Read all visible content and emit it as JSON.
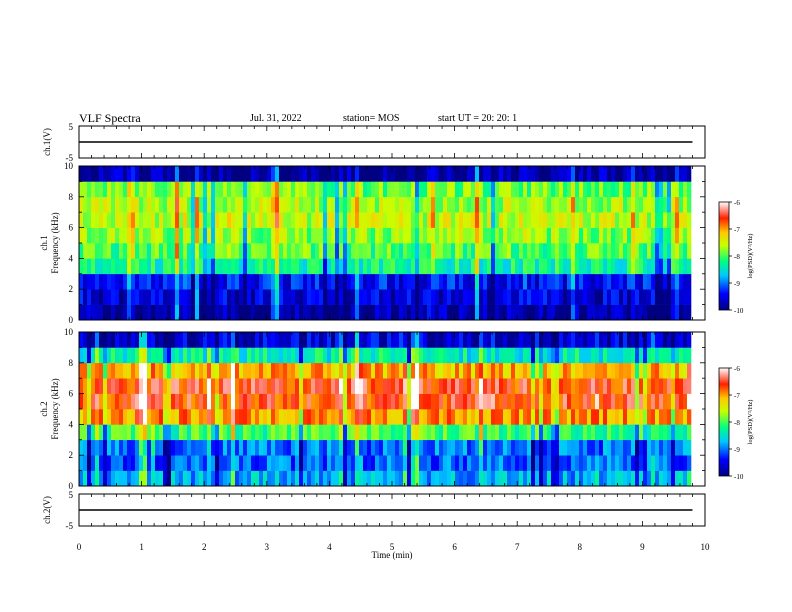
{
  "header": {
    "title": "VLF Spectra",
    "date": "Jul. 31, 2022",
    "station": "station= MOS",
    "start": "start UT =  20: 20: 1"
  },
  "chart_data": [
    {
      "type": "line",
      "panel": "ch1-waveform",
      "ylabel": "ch.1(V)",
      "ylim": [
        -5,
        5
      ],
      "yticks": [
        "5",
        "-5"
      ],
      "series": [
        {
          "x": [
            0,
            9.8
          ],
          "values": [
            0,
            0
          ]
        }
      ],
      "xlim": [
        0,
        10
      ]
    },
    {
      "type": "heatmap",
      "panel": "ch1-spectrogram",
      "ylabel_line1": "ch.1",
      "ylabel_line2": "Frequency (kHz)",
      "ylim": [
        0,
        10
      ],
      "yticks": [
        "0",
        "2",
        "4",
        "6",
        "8",
        "10"
      ],
      "xlim": [
        0,
        9.8
      ],
      "colorbar": {
        "label": "log(PSD)(V²/Hz)",
        "range": [
          -10,
          -6
        ],
        "ticks": [
          "-6",
          "-7",
          "-8",
          "-9",
          "-10"
        ]
      },
      "band_profile": [
        {
          "f": 0.5,
          "level": -9.8
        },
        {
          "f": 1.5,
          "level": -9.6
        },
        {
          "f": 2.5,
          "level": -9.4
        },
        {
          "f": 3.5,
          "level": -8.3
        },
        {
          "f": 4.5,
          "level": -8.0
        },
        {
          "f": 5.5,
          "level": -7.8
        },
        {
          "f": 6.5,
          "level": -7.6
        },
        {
          "f": 7.5,
          "level": -7.7
        },
        {
          "f": 8.5,
          "level": -7.9
        },
        {
          "f": 9.5,
          "level": -9.8
        }
      ]
    },
    {
      "type": "heatmap",
      "panel": "ch2-spectrogram",
      "ylabel_line1": "ch.2",
      "ylabel_line2": "Frequency (kHz)",
      "ylim": [
        0,
        10
      ],
      "yticks": [
        "0",
        "2",
        "4",
        "6",
        "8",
        "10"
      ],
      "xlim": [
        0,
        9.8
      ],
      "colorbar": {
        "label": "log(PSD)(V²/Hz)",
        "range": [
          -10,
          -6
        ],
        "ticks": [
          "-6",
          "-7",
          "-8",
          "-9",
          "-10"
        ]
      },
      "band_profile": [
        {
          "f": 0.5,
          "level": -8.8
        },
        {
          "f": 1.5,
          "level": -9.1
        },
        {
          "f": 2.5,
          "level": -9.0
        },
        {
          "f": 3.5,
          "level": -8.1
        },
        {
          "f": 4.5,
          "level": -7.0
        },
        {
          "f": 5.5,
          "level": -6.6
        },
        {
          "f": 6.5,
          "level": -6.6
        },
        {
          "f": 7.5,
          "level": -7.1
        },
        {
          "f": 8.5,
          "level": -8.4
        },
        {
          "f": 9.5,
          "level": -9.6
        }
      ]
    },
    {
      "type": "line",
      "panel": "ch2-waveform",
      "ylabel": "ch.2(V)",
      "ylim": [
        -5,
        5
      ],
      "yticks": [
        "5",
        "-5"
      ],
      "series": [
        {
          "x": [
            0,
            9.8
          ],
          "values": [
            0,
            0
          ]
        }
      ],
      "xlim": [
        0,
        10
      ],
      "xlabel": "Time (min)",
      "xticks": [
        "0",
        "1",
        "2",
        "3",
        "4",
        "5",
        "6",
        "7",
        "8",
        "9",
        "10"
      ]
    }
  ]
}
